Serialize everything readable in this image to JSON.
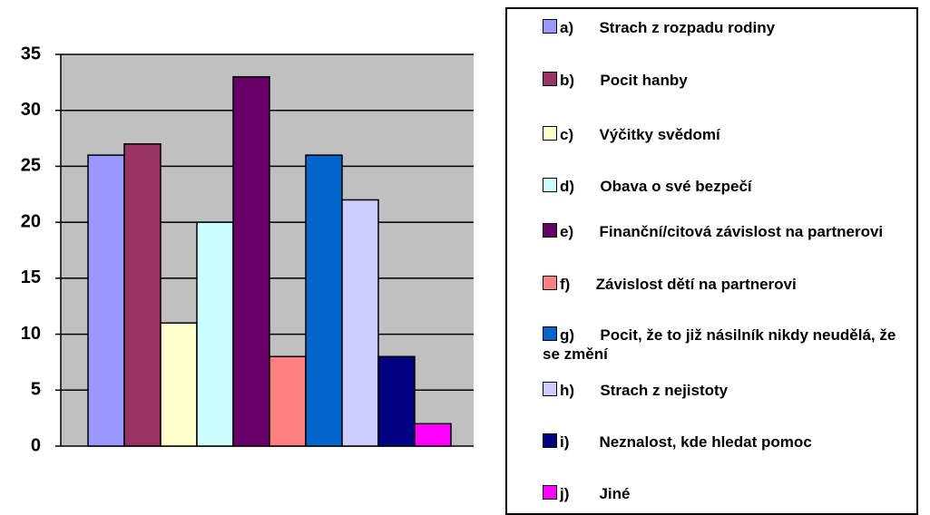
{
  "chart_data": {
    "type": "bar",
    "ylim": [
      0,
      35
    ],
    "yticks": [
      0,
      5,
      10,
      15,
      20,
      25,
      30,
      35
    ],
    "grid": true,
    "legend": "right",
    "series": [
      {
        "name": "a)      Strach z rozpadu rodiny",
        "color": "#9999ff",
        "values": [
          26
        ]
      },
      {
        "name": "b)      Pocit hanby",
        "color": "#993366",
        "values": [
          27
        ]
      },
      {
        "name": "c)      Výčitky svědomí",
        "color": "#ffffcc",
        "values": [
          11
        ]
      },
      {
        "name": "d)      Obava o své bezpečí",
        "color": "#ccffff",
        "values": [
          20
        ]
      },
      {
        "name": "e)      Finanční/citová závislost na partnerovi",
        "color": "#660066",
        "values": [
          33
        ]
      },
      {
        "name": "f)      Závislost dětí na partnerovi",
        "color": "#ff8080",
        "values": [
          8
        ]
      },
      {
        "name": "g)      Pocit, že to již násilník nikdy neudělá, že se změní",
        "color": "#0066cc",
        "values": [
          26
        ]
      },
      {
        "name": "h)      Strach z nejistoty",
        "color": "#ccccff",
        "values": [
          22
        ]
      },
      {
        "name": "i)       Neznalost, kde hledat pomoc",
        "color": "#000080",
        "values": [
          8
        ]
      },
      {
        "name": "j)       Jiné",
        "color": "#ff00ff",
        "values": [
          2
        ]
      }
    ]
  }
}
